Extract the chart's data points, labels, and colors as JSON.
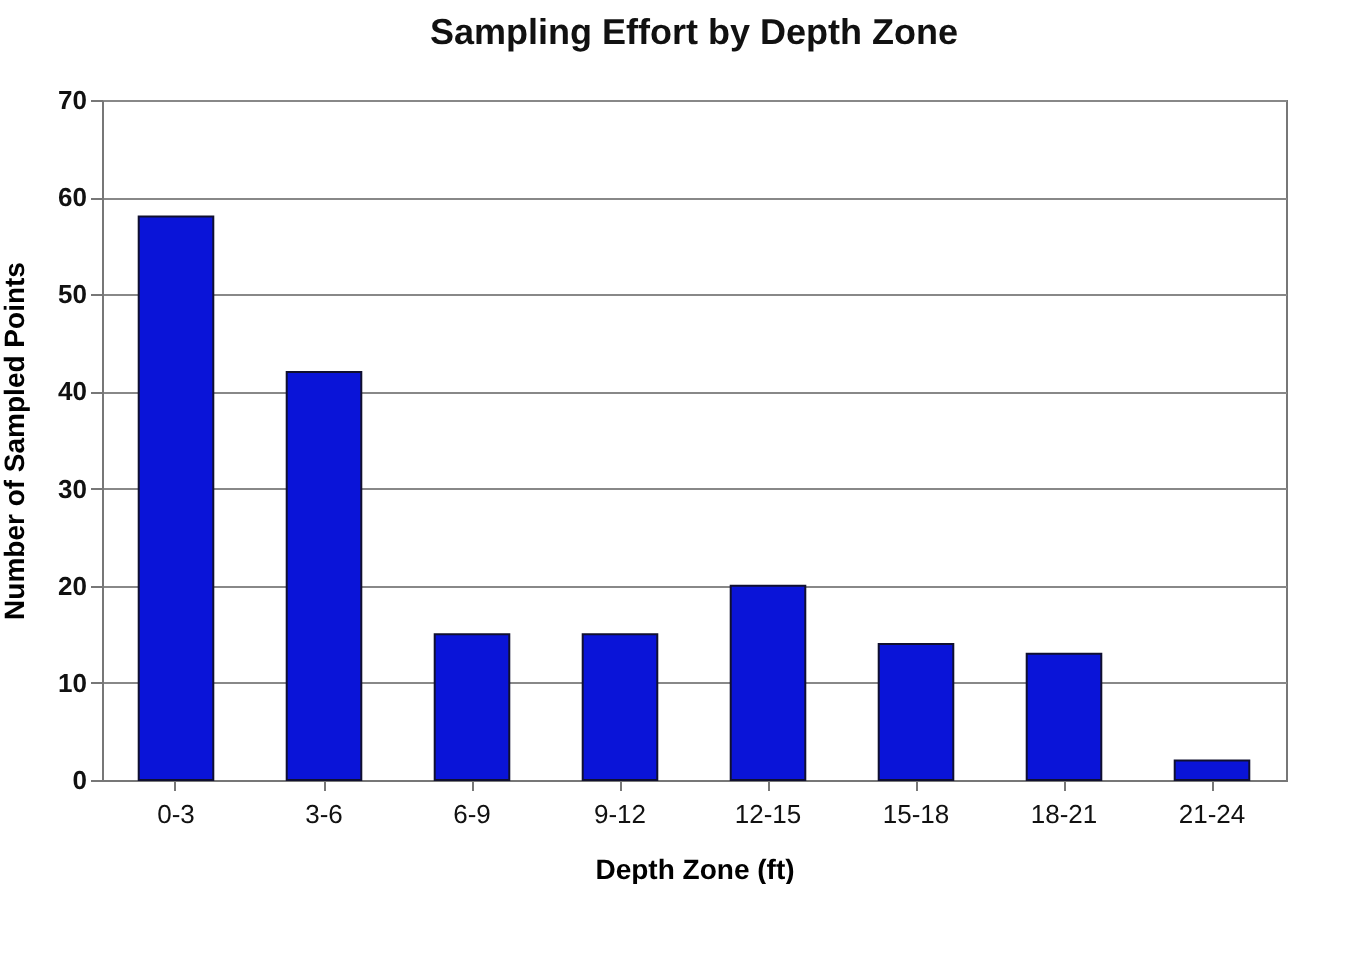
{
  "chart_data": {
    "type": "bar",
    "title": "Sampling Effort by Depth Zone",
    "xlabel": "Depth Zone (ft)",
    "ylabel": "Number of Sampled Points",
    "categories": [
      "0-3",
      "3-6",
      "6-9",
      "9-12",
      "12-15",
      "15-18",
      "18-21",
      "21-24"
    ],
    "values": [
      58,
      42,
      15,
      15,
      20,
      14,
      13,
      2
    ],
    "color": "#0a14d8",
    "ylim": [
      0,
      70
    ],
    "yticks": [
      0,
      10,
      20,
      30,
      40,
      50,
      60,
      70
    ],
    "grid": "y"
  }
}
